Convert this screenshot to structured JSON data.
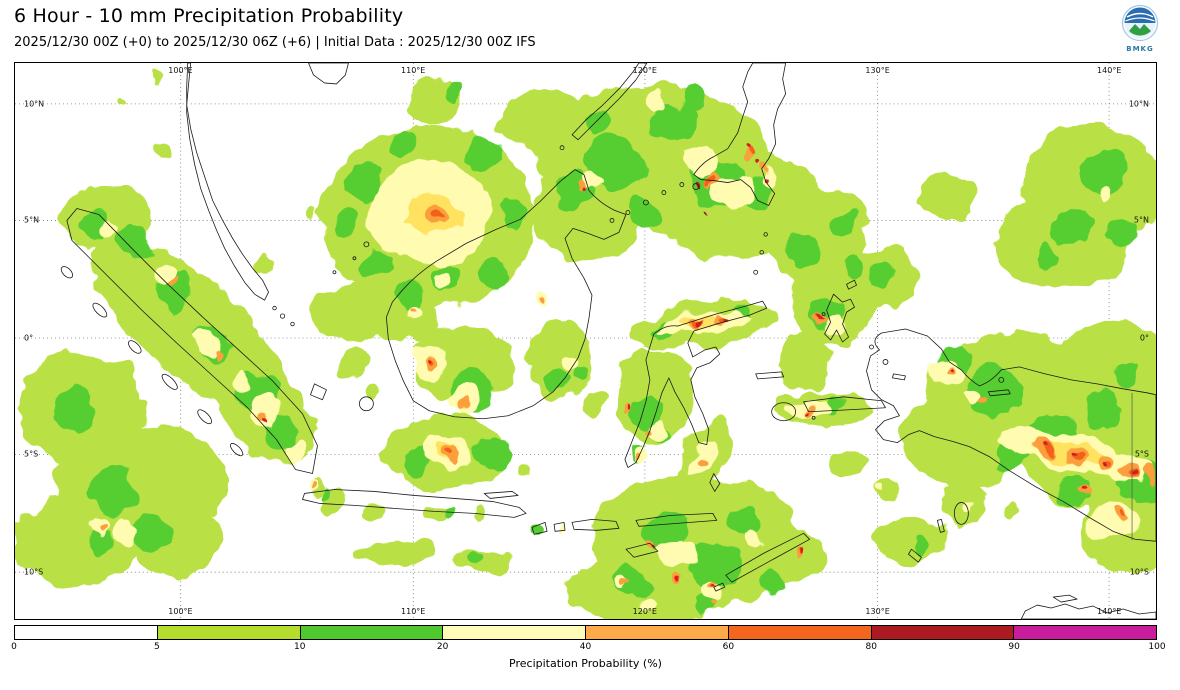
{
  "header": {
    "title": "6 Hour - 10 mm Precipitation Probability",
    "subtitle": "2025/12/30 00Z (+0) to 2025/12/30 06Z (+6) | Initial Data : 2025/12/30 00Z IFS",
    "logo": {
      "caption": "BMKG"
    }
  },
  "map": {
    "lon_ticks": [
      "100°E",
      "110°E",
      "120°E",
      "130°E",
      "140°E"
    ],
    "lat_ticks": [
      "10°N",
      "5°N",
      "0°",
      "5°S",
      "10°S"
    ]
  },
  "legend": {
    "label": "Precipitation Probability (%)",
    "ticks": [
      "0",
      "5",
      "10",
      "20",
      "40",
      "60",
      "80",
      "90",
      "100"
    ],
    "segment_colors": [
      "#ffffff",
      "#b4dd2e",
      "#4fc92d",
      "#fffcb8",
      "#fdaa48",
      "#f4661f",
      "#ae1a22",
      "#ca1d9c"
    ],
    "values_percent": [
      0,
      5,
      10,
      20,
      40,
      60,
      80,
      90,
      100
    ]
  }
}
